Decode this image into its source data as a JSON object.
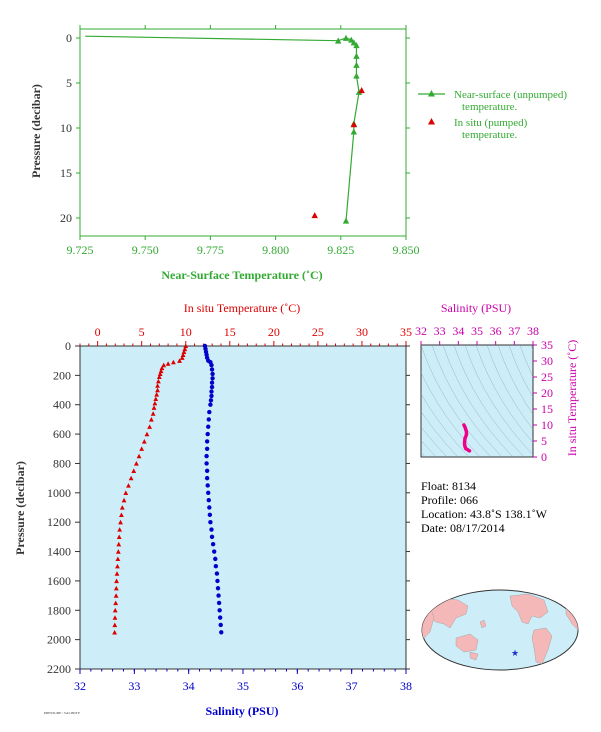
{
  "colors": {
    "green": "#33aa33",
    "red": "#dd0000",
    "blue": "#0000cc",
    "magenta": "#cc00aa",
    "plot_bg": "#cdeef8",
    "axis_text": "#333333"
  },
  "chart_data": [
    {
      "id": "near-surface",
      "type": "line",
      "xlabel": "Near-Surface Temperature (˚C)",
      "ylabel": "Pressure (decibar)",
      "xlim": [
        9.725,
        9.85
      ],
      "ylim": [
        22,
        -1
      ],
      "xticks": [
        "9.725",
        "9.750",
        "9.775",
        "9.800",
        "9.825",
        "9.850"
      ],
      "xtick_values": [
        9.725,
        9.75,
        9.775,
        9.8,
        9.825,
        9.85
      ],
      "yticks": [
        "0",
        "5",
        "10",
        "15",
        "20"
      ],
      "ytick_values": [
        0,
        5,
        10,
        15,
        20
      ],
      "legend": [
        {
          "label": "Near-surface (unpumped)",
          "label2": "temperature.",
          "marker": "line-triangle",
          "color": "#33aa33"
        },
        {
          "label": "In situ (pumped)",
          "label2": "temperature.",
          "marker": "triangle",
          "color": "#dd0000"
        }
      ],
      "series": [
        {
          "name": "Near-surface (unpumped) temperature.",
          "color": "#33aa33",
          "points": [
            [
              9.727,
              -0.2
            ],
            [
              9.824,
              0.3
            ],
            [
              9.827,
              0.0
            ],
            [
              9.829,
              0.2
            ],
            [
              9.83,
              0.5
            ],
            [
              9.831,
              0.8
            ],
            [
              9.831,
              2.0
            ],
            [
              9.831,
              3.0
            ],
            [
              9.831,
              4.2
            ],
            [
              9.832,
              6.0
            ],
            [
              9.83,
              9.5
            ],
            [
              9.83,
              10.4
            ],
            [
              9.827,
              20.3
            ]
          ],
          "marked_from": 1
        },
        {
          "name": "In situ (pumped) temperature.",
          "color": "#dd0000",
          "points": [
            [
              9.833,
              5.8
            ],
            [
              9.83,
              9.6
            ],
            [
              9.815,
              19.7
            ]
          ]
        }
      ]
    },
    {
      "id": "profile",
      "type": "scatter",
      "top_axis_label": "In situ Temperature (˚C)",
      "bottom_axis_label": "Salinity (PSU)",
      "ylabel": "Pressure (decibar)",
      "temp_lim": [
        -2,
        35
      ],
      "sal_lim": [
        32,
        38
      ],
      "pressure_lim": [
        0,
        2200
      ],
      "temp_ticks": [
        "0",
        "5",
        "10",
        "15",
        "20",
        "25",
        "30",
        "35"
      ],
      "temp_tick_values": [
        0,
        5,
        10,
        15,
        20,
        25,
        30,
        35
      ],
      "sal_ticks": [
        "32",
        "33",
        "34",
        "35",
        "36",
        "37",
        "38"
      ],
      "sal_tick_values": [
        32,
        33,
        34,
        35,
        36,
        37,
        38
      ],
      "pressure_ticks": [
        "0",
        "200",
        "400",
        "600",
        "800",
        "1000",
        "1200",
        "1400",
        "1600",
        "1800",
        "2000",
        "2200"
      ],
      "pressure_tick_values": [
        0,
        200,
        400,
        600,
        800,
        1000,
        1200,
        1400,
        1600,
        1800,
        2000,
        2200
      ],
      "temperature": [
        [
          10.0,
          0
        ],
        [
          9.9,
          20
        ],
        [
          9.8,
          40
        ],
        [
          9.7,
          60
        ],
        [
          9.6,
          80
        ],
        [
          9.3,
          100
        ],
        [
          8.6,
          110
        ],
        [
          8.0,
          120
        ],
        [
          7.5,
          130
        ],
        [
          7.3,
          150
        ],
        [
          7.2,
          170
        ],
        [
          7.1,
          190
        ],
        [
          7.0,
          210
        ],
        [
          6.9,
          240
        ],
        [
          6.8,
          270
        ],
        [
          6.8,
          300
        ],
        [
          6.7,
          330
        ],
        [
          6.6,
          360
        ],
        [
          6.5,
          390
        ],
        [
          6.4,
          420
        ],
        [
          6.3,
          460
        ],
        [
          6.1,
          500
        ],
        [
          5.9,
          550
        ],
        [
          5.6,
          600
        ],
        [
          5.3,
          650
        ],
        [
          5.0,
          700
        ],
        [
          4.7,
          750
        ],
        [
          4.4,
          800
        ],
        [
          4.1,
          850
        ],
        [
          3.8,
          900
        ],
        [
          3.5,
          950
        ],
        [
          3.2,
          1000
        ],
        [
          3.0,
          1050
        ],
        [
          2.8,
          1100
        ],
        [
          2.7,
          1150
        ],
        [
          2.6,
          1200
        ],
        [
          2.5,
          1250
        ],
        [
          2.45,
          1300
        ],
        [
          2.4,
          1350
        ],
        [
          2.35,
          1400
        ],
        [
          2.3,
          1450
        ],
        [
          2.25,
          1500
        ],
        [
          2.2,
          1550
        ],
        [
          2.15,
          1600
        ],
        [
          2.12,
          1650
        ],
        [
          2.1,
          1700
        ],
        [
          2.05,
          1750
        ],
        [
          2.0,
          1800
        ],
        [
          1.97,
          1850
        ],
        [
          1.95,
          1900
        ],
        [
          1.93,
          1950
        ]
      ],
      "salinity": [
        [
          34.3,
          0
        ],
        [
          34.31,
          20
        ],
        [
          34.32,
          40
        ],
        [
          34.33,
          60
        ],
        [
          34.34,
          80
        ],
        [
          34.36,
          100
        ],
        [
          34.4,
          110
        ],
        [
          34.42,
          130
        ],
        [
          34.43,
          160
        ],
        [
          34.44,
          190
        ],
        [
          34.44,
          220
        ],
        [
          34.43,
          250
        ],
        [
          34.43,
          280
        ],
        [
          34.42,
          310
        ],
        [
          34.42,
          340
        ],
        [
          34.41,
          370
        ],
        [
          34.4,
          400
        ],
        [
          34.38,
          450
        ],
        [
          34.37,
          500
        ],
        [
          34.36,
          550
        ],
        [
          34.35,
          600
        ],
        [
          34.34,
          650
        ],
        [
          34.34,
          700
        ],
        [
          34.33,
          750
        ],
        [
          34.33,
          800
        ],
        [
          34.34,
          850
        ],
        [
          34.34,
          900
        ],
        [
          34.35,
          950
        ],
        [
          34.36,
          1000
        ],
        [
          34.37,
          1050
        ],
        [
          34.38,
          1100
        ],
        [
          34.39,
          1150
        ],
        [
          34.4,
          1200
        ],
        [
          34.42,
          1250
        ],
        [
          34.43,
          1300
        ],
        [
          34.45,
          1350
        ],
        [
          34.47,
          1400
        ],
        [
          34.49,
          1450
        ],
        [
          34.5,
          1500
        ],
        [
          34.52,
          1550
        ],
        [
          34.53,
          1600
        ],
        [
          34.54,
          1650
        ],
        [
          34.55,
          1700
        ],
        [
          34.56,
          1750
        ],
        [
          34.57,
          1800
        ],
        [
          34.58,
          1850
        ],
        [
          34.59,
          1900
        ],
        [
          34.6,
          1950
        ]
      ]
    },
    {
      "id": "ts-diagram",
      "type": "scatter",
      "top_axis_label": "Salinity (PSU)",
      "right_axis_label": "In situ Temperature (˚C)",
      "xlim": [
        32,
        38
      ],
      "ylim": [
        0,
        35
      ],
      "xticks": [
        "32",
        "33",
        "34",
        "35",
        "36",
        "37",
        "38"
      ],
      "xtick_values": [
        32,
        33,
        34,
        35,
        36,
        37,
        38
      ],
      "yticks": [
        "0",
        "5",
        "10",
        "15",
        "20",
        "25",
        "30",
        "35"
      ],
      "ytick_values": [
        0,
        5,
        10,
        15,
        20,
        25,
        30,
        35
      ],
      "ts_curve": [
        [
          34.3,
          10.0
        ],
        [
          34.36,
          9.3
        ],
        [
          34.43,
          8.0
        ],
        [
          34.44,
          7.2
        ],
        [
          34.42,
          6.8
        ],
        [
          34.4,
          6.4
        ],
        [
          34.36,
          5.9
        ],
        [
          34.34,
          5.0
        ],
        [
          34.33,
          4.1
        ],
        [
          34.36,
          3.2
        ],
        [
          34.4,
          2.6
        ],
        [
          34.47,
          2.4
        ],
        [
          34.53,
          2.15
        ],
        [
          34.57,
          2.0
        ],
        [
          34.6,
          1.93
        ]
      ]
    }
  ],
  "info": {
    "float": "Float:  8134",
    "profile": "Profile:  066",
    "location": "Location:  43.8˚S  138.1˚W",
    "date": "Date:  08/17/2014"
  },
  "map": {
    "float_marker_lon": -138.1,
    "float_marker_lat": -43.8,
    "marker_color": "#2233cc"
  },
  "footer": {
    "stamp": "PRESSURE / SALINITY"
  }
}
